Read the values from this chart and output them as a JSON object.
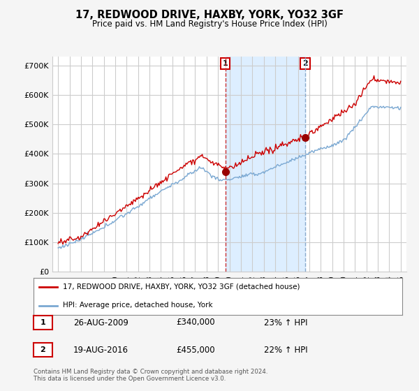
{
  "title": "17, REDWOOD DRIVE, HAXBY, YORK, YO32 3GF",
  "subtitle": "Price paid vs. HM Land Registry's House Price Index (HPI)",
  "ylabel_ticks": [
    "£0",
    "£100K",
    "£200K",
    "£300K",
    "£400K",
    "£500K",
    "£600K",
    "£700K"
  ],
  "ytick_values": [
    0,
    100000,
    200000,
    300000,
    400000,
    500000,
    600000,
    700000
  ],
  "ylim": [
    0,
    730000
  ],
  "xlim_start": 1994.5,
  "xlim_end": 2025.5,
  "fig_bg_color": "#f5f5f5",
  "plot_bg_color": "#ffffff",
  "grid_color": "#cccccc",
  "red_color": "#cc0000",
  "blue_color": "#7aa8d2",
  "shade_color": "#ddeeff",
  "marker1_x": 2009.65,
  "marker1_y": 340000,
  "marker2_x": 2016.63,
  "marker2_y": 455000,
  "legend_line1": "17, REDWOOD DRIVE, HAXBY, YORK, YO32 3GF (detached house)",
  "legend_line2": "HPI: Average price, detached house, York",
  "annotation1_label": "1",
  "annotation1_date": "26-AUG-2009",
  "annotation1_price": "£340,000",
  "annotation1_hpi": "23% ↑ HPI",
  "annotation2_label": "2",
  "annotation2_date": "19-AUG-2016",
  "annotation2_price": "£455,000",
  "annotation2_hpi": "22% ↑ HPI",
  "footer": "Contains HM Land Registry data © Crown copyright and database right 2024.\nThis data is licensed under the Open Government Licence v3.0."
}
